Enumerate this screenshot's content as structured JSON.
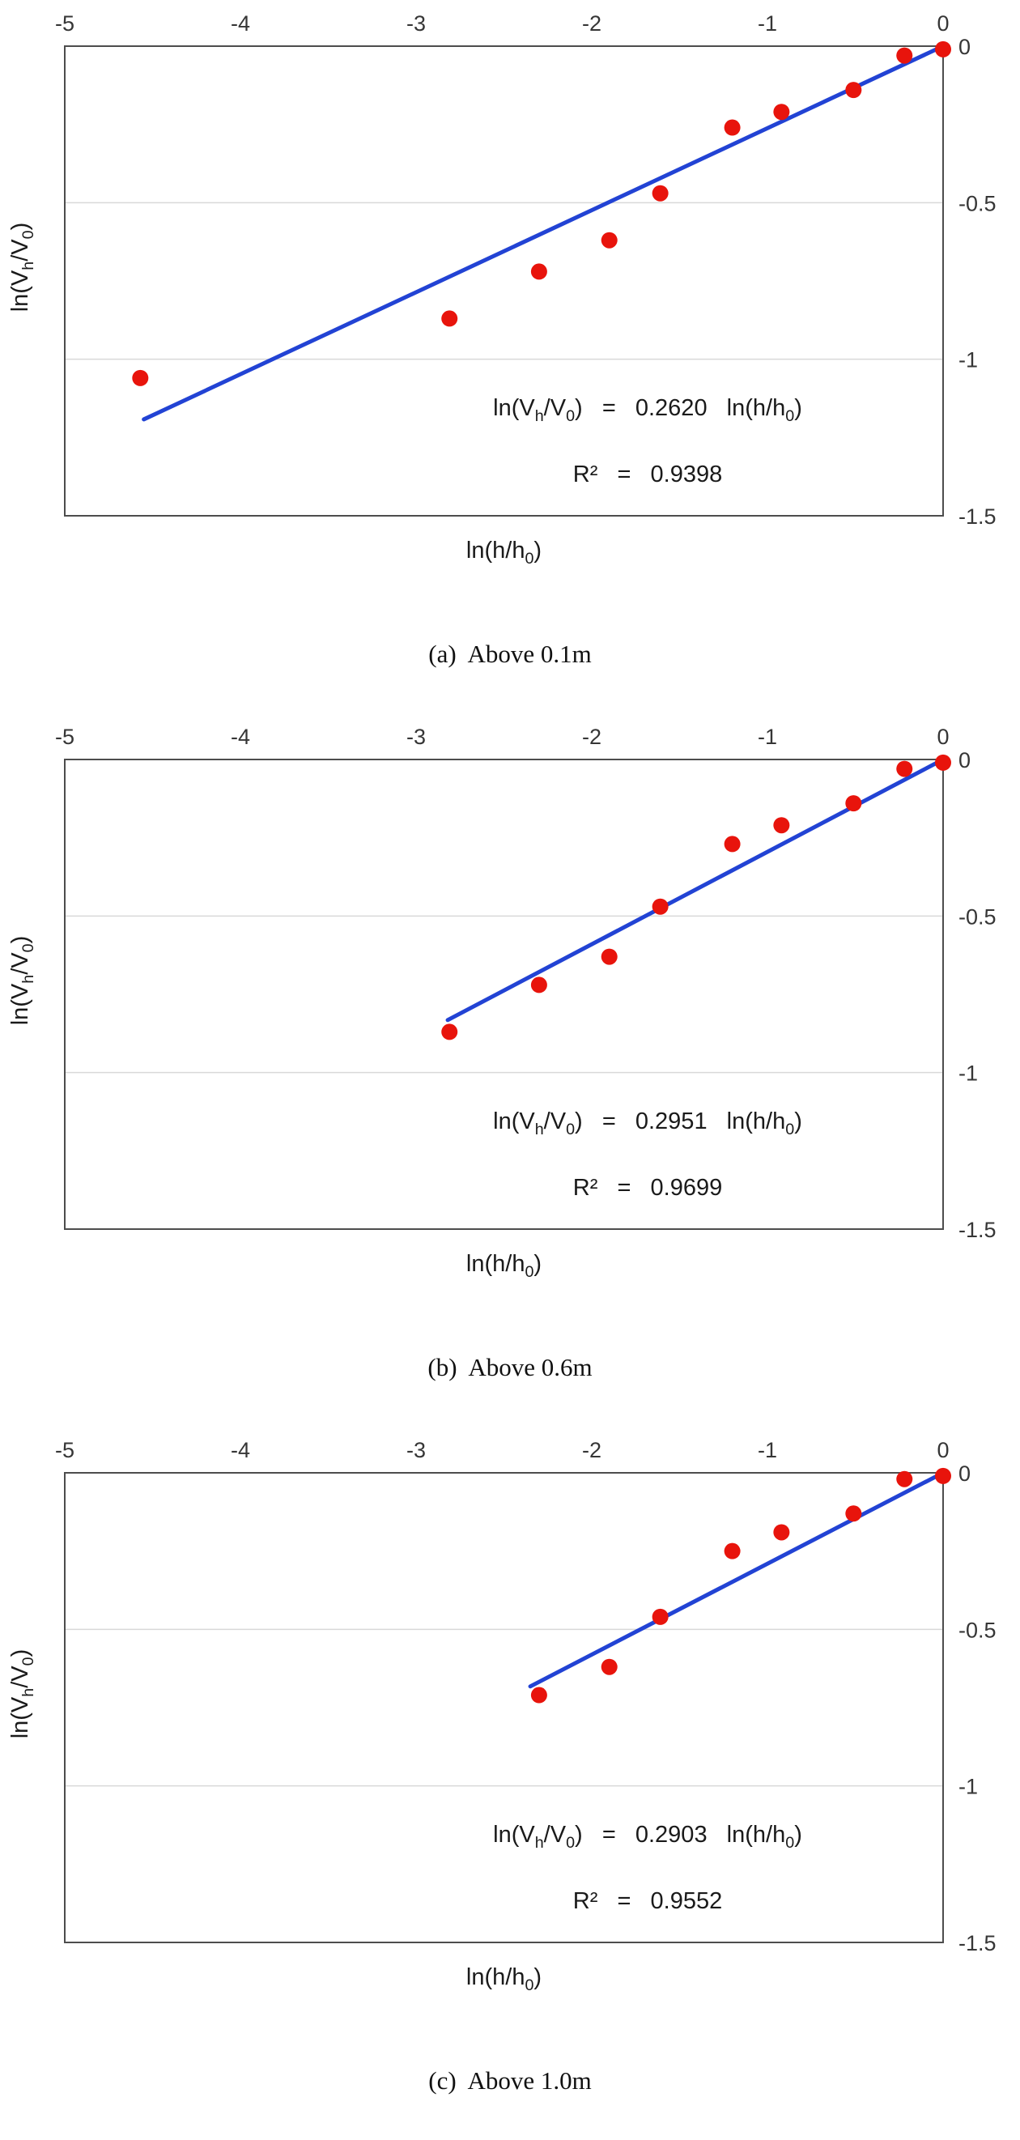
{
  "colors": {
    "point": "#e8140c",
    "trend_line": "#2243d4",
    "grid": "#d9d9d9",
    "plot_border": "#4d4d4d",
    "tick_text": "#363636",
    "text": "#1a1a1a"
  },
  "chart_data": [
    {
      "type": "scatter",
      "caption": "(a)  Above 0.1m",
      "xlabel": "ln(h/h~0~)",
      "ylabel": "ln(V~h~/V~0~)",
      "xlim": [
        -5,
        0
      ],
      "ylim": [
        -1.5,
        0
      ],
      "x_ticks": [
        -5,
        -4,
        -3,
        -2,
        -1,
        0
      ],
      "y_ticks": [
        0,
        -0.5,
        -1,
        -1.5
      ],
      "grid_y": [
        -0.5,
        -1
      ],
      "legend": "none",
      "points": [
        [
          -4.57,
          -1.06
        ],
        [
          -2.81,
          -0.87
        ],
        [
          -2.3,
          -0.72
        ],
        [
          -1.9,
          -0.62
        ],
        [
          -1.61,
          -0.47
        ],
        [
          -1.2,
          -0.26
        ],
        [
          -0.92,
          -0.21
        ],
        [
          -0.51,
          -0.14
        ],
        [
          -0.22,
          -0.03
        ],
        [
          0,
          -0.01
        ]
      ],
      "trendline": {
        "slope": 0.262,
        "x_start": -4.55,
        "x_end": 0
      },
      "equation": "ln(V~h~/V~0~)  =  0.2620  ln(h/h~0~)",
      "r2_label": "R²  =  0.9398"
    },
    {
      "type": "scatter",
      "caption": "(b)  Above 0.6m",
      "xlabel": "ln(h/h~0~)",
      "ylabel": "ln(V~h~/V~0~)",
      "xlim": [
        -5,
        0
      ],
      "ylim": [
        -1.5,
        0
      ],
      "x_ticks": [
        -5,
        -4,
        -3,
        -2,
        -1,
        0
      ],
      "y_ticks": [
        0,
        -0.5,
        -1,
        -1.5
      ],
      "grid_y": [
        -0.5,
        -1
      ],
      "legend": "none",
      "points": [
        [
          -2.81,
          -0.87
        ],
        [
          -2.3,
          -0.72
        ],
        [
          -1.9,
          -0.63
        ],
        [
          -1.61,
          -0.47
        ],
        [
          -1.2,
          -0.27
        ],
        [
          -0.92,
          -0.21
        ],
        [
          -0.51,
          -0.14
        ],
        [
          -0.22,
          -0.03
        ],
        [
          0,
          -0.01
        ]
      ],
      "trendline": {
        "slope": 0.2951,
        "x_start": -2.82,
        "x_end": 0
      },
      "equation": "ln(V~h~/V~0~)  =  0.2951  ln(h/h~0~)",
      "r2_label": "R²  =  0.9699"
    },
    {
      "type": "scatter",
      "caption": "(c)  Above 1.0m",
      "xlabel": "ln(h/h~0~)",
      "ylabel": "ln(V~h~/V~0~)",
      "xlim": [
        -5,
        0
      ],
      "ylim": [
        -1.5,
        0
      ],
      "x_ticks": [
        -5,
        -4,
        -3,
        -2,
        -1,
        0
      ],
      "y_ticks": [
        0,
        -0.5,
        -1,
        -1.5
      ],
      "grid_y": [
        -0.5,
        -1
      ],
      "legend": "none",
      "points": [
        [
          -2.3,
          -0.71
        ],
        [
          -1.9,
          -0.62
        ],
        [
          -1.61,
          -0.46
        ],
        [
          -1.2,
          -0.25
        ],
        [
          -0.92,
          -0.19
        ],
        [
          -0.51,
          -0.13
        ],
        [
          -0.22,
          -0.02
        ],
        [
          0,
          -0.01
        ]
      ],
      "trendline": {
        "slope": 0.2903,
        "x_start": -2.35,
        "x_end": 0
      },
      "equation": "ln(V~h~/V~0~)  =  0.2903  ln(h/h~0~)",
      "r2_label": "R²  =  0.9552"
    }
  ]
}
